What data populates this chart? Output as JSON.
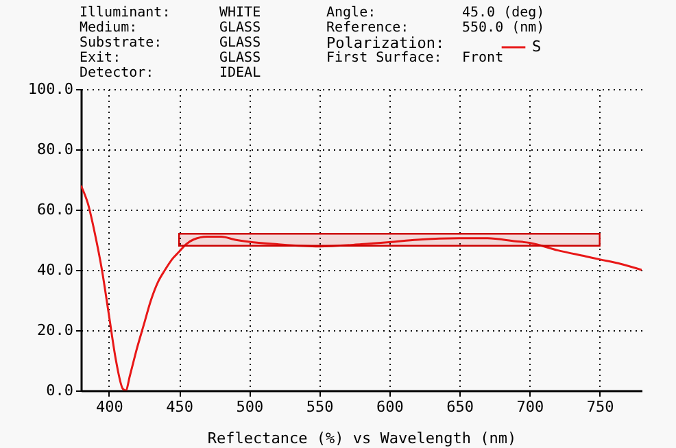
{
  "chart_data": {
    "type": "line",
    "xlabel": "Reflectance (%)  vs  Wavelength (nm)",
    "annotations": [
      "Illuminant:",
      "WHITE",
      "Medium:",
      "GLASS",
      "Substrate:",
      "GLASS",
      "Exit:",
      "GLASS",
      "Detector:",
      "IDEAL",
      "Angle:",
      "45.0 (deg)",
      "Reference:",
      "550.0 (nm)",
      "First Surface:",
      "Front"
    ],
    "legend_title": "Polarization:",
    "legend": "top right",
    "x": [
      380,
      385,
      390,
      395,
      400,
      405,
      410,
      412,
      415,
      420,
      425,
      430,
      435,
      440,
      445,
      450,
      455,
      460,
      470,
      480,
      490,
      500,
      520,
      550,
      580,
      600,
      620,
      650,
      670,
      690,
      700,
      720,
      740,
      750,
      765,
      780
    ],
    "series": [
      {
        "name": "S",
        "color": "#e81818",
        "values": [
          68,
          62,
          52,
          40,
          25,
          10,
          0.5,
          0,
          5,
          14,
          22,
          30,
          36,
          40,
          43.5,
          46,
          48.5,
          50,
          51,
          51,
          50,
          49.3,
          48.5,
          47.8,
          48.5,
          49.2,
          50,
          50.5,
          50.5,
          49.5,
          49,
          46.5,
          44.5,
          43.5,
          42,
          40
        ]
      }
    ],
    "xlim": [
      380,
      780
    ],
    "xticks": [
      400,
      450,
      500,
      550,
      600,
      650,
      700,
      750
    ],
    "ylim": [
      0,
      100
    ],
    "yticks": [
      {
        "value": 0,
        "label": "0.0"
      },
      {
        "value": 20,
        "label": "20.0"
      },
      {
        "value": 40,
        "label": "40.0"
      },
      {
        "value": 60,
        "label": "60.0"
      },
      {
        "value": 80,
        "label": "80.0"
      },
      {
        "value": 100,
        "label": "100.0"
      }
    ],
    "grid": true,
    "line_style": "solid",
    "marker": "none",
    "bands": [
      {
        "axis": "y",
        "from": 48,
        "to": 52,
        "color": "#cc0000"
      }
    ]
  }
}
